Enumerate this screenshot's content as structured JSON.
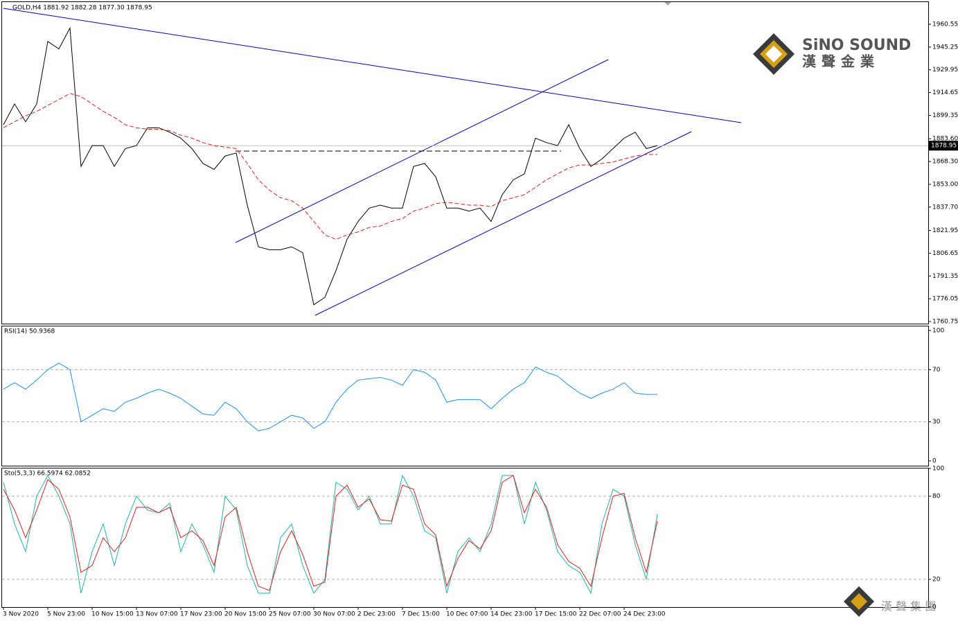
{
  "chart_data": [
    {
      "type": "line",
      "title": "GOLD,H4  1881.92 1882.28 1877.30 1878.95",
      "categories": [
        "3 Nov 2020",
        null,
        null,
        null,
        "5 Nov 23:00",
        null,
        null,
        null,
        "10 Nov 15:00",
        null,
        null,
        null,
        "13 Nov 07:00",
        null,
        null,
        null,
        "17 Nov 23:00",
        null,
        null,
        null,
        "20 Nov 15:00",
        null,
        null,
        null,
        "25 Nov 07:00",
        null,
        null,
        null,
        "30 Nov 07:00",
        null,
        null,
        null,
        "2 Dec 23:00",
        null,
        null,
        null,
        "7 Dec 15:00",
        null,
        null,
        null,
        "10 Dec 07:00",
        null,
        null,
        null,
        "14 Dec 23:00",
        null,
        null,
        null,
        "17 Dec 15:00",
        null,
        null,
        null,
        "22 Dec 07:00",
        null,
        null,
        null,
        "24 Dec 23:00",
        null,
        null,
        null
      ],
      "series": [
        {
          "color": "#000000",
          "dashed": false,
          "values": [
            1893,
            1907,
            1895,
            1907,
            1949,
            1944,
            1958,
            1865,
            1879,
            1879,
            1865,
            1877,
            1879,
            1891,
            1891,
            1888,
            1884,
            1877,
            1867,
            1863,
            1872,
            1874,
            1839,
            1811,
            1809,
            1809,
            1811,
            1807,
            1772,
            1777,
            1795,
            1816,
            1828,
            1837,
            1839,
            1837,
            1837,
            1865,
            1867,
            1858,
            1837,
            1837,
            1835,
            1837,
            1828,
            1846,
            1856,
            1860,
            1884,
            1881,
            1879,
            1893,
            1877,
            1865,
            1870,
            1877,
            1884,
            1888,
            1877,
            1879
          ]
        },
        {
          "color": "#e0201c",
          "dashed": true,
          "values": [
            1891,
            1895,
            1899,
            1902,
            1906,
            1910,
            1914,
            1912,
            1907,
            1902,
            1898,
            1893,
            1891,
            1890,
            1890,
            1889,
            1886,
            1884,
            1881,
            1879,
            1878,
            1877,
            1867,
            1856,
            1849,
            1844,
            1842,
            1837,
            1828,
            1819,
            1816,
            1819,
            1821,
            1824,
            1825,
            1828,
            1830,
            1835,
            1837,
            1840,
            1841,
            1840,
            1839,
            1839,
            1838,
            1842,
            1844,
            1846,
            1851,
            1856,
            1860,
            1864,
            1866,
            1866,
            1867,
            1868,
            1870,
            1872,
            1873,
            1873
          ]
        }
      ],
      "ylim": [
        1759.35,
        1975.45
      ],
      "yticks": [
        1960.55,
        1945.25,
        1929.95,
        1914.65,
        1899.35,
        {
          "value": 1883.6,
          "label": "1883.60"
        },
        {
          "value": 1868.3,
          "label": "1868.30"
        },
        {
          "value": 1853.0,
          "label": "1853.00"
        },
        {
          "value": 1837.7,
          "label": "1837.70"
        },
        1821.95,
        1806.65,
        1791.35,
        1776.05,
        1760.75
      ],
      "last_price": 1878.95,
      "grid": false
    },
    {
      "type": "line",
      "title": "RSI(14) 50.9368",
      "series": [
        {
          "color": "#1e90ff",
          "dashed": false,
          "values": [
            55,
            60,
            55,
            62,
            70,
            75,
            70,
            30,
            35,
            40,
            38,
            45,
            48,
            52,
            55,
            52,
            48,
            42,
            36,
            35,
            45,
            40,
            30,
            23,
            25,
            30,
            35,
            33,
            25,
            30,
            45,
            55,
            62,
            63,
            64,
            62,
            58,
            70,
            68,
            62,
            45,
            47,
            47,
            47,
            40,
            48,
            55,
            60,
            72,
            68,
            65,
            58,
            52,
            48,
            52,
            55,
            60,
            52,
            51,
            51
          ]
        }
      ],
      "ylim": [
        -3.7,
        103.7
      ],
      "yticks": [
        100,
        70,
        30,
        0
      ],
      "grid": true
    },
    {
      "type": "line",
      "title": "Sto(5,3,3) 66.5974 62.0852",
      "series": [
        {
          "color": "#20b2aa",
          "dashed": false,
          "values": [
            90,
            60,
            40,
            80,
            95,
            80,
            60,
            10,
            40,
            60,
            30,
            60,
            80,
            70,
            68,
            75,
            40,
            60,
            45,
            25,
            80,
            70,
            30,
            10,
            10,
            50,
            60,
            30,
            10,
            20,
            90,
            85,
            70,
            80,
            60,
            60,
            95,
            80,
            55,
            50,
            10,
            40,
            50,
            40,
            60,
            95,
            95,
            60,
            90,
            70,
            40,
            30,
            25,
            10,
            60,
            85,
            80,
            45,
            20,
            67
          ]
        },
        {
          "color": "#e0201c",
          "dashed": false,
          "values": [
            85,
            70,
            50,
            70,
            92,
            85,
            65,
            25,
            30,
            50,
            40,
            50,
            72,
            72,
            68,
            72,
            50,
            55,
            48,
            30,
            65,
            72,
            40,
            15,
            12,
            40,
            55,
            38,
            15,
            18,
            80,
            88,
            72,
            78,
            63,
            62,
            88,
            85,
            60,
            52,
            15,
            35,
            48,
            42,
            55,
            90,
            95,
            68,
            85,
            72,
            45,
            33,
            28,
            15,
            50,
            80,
            82,
            50,
            25,
            62
          ]
        }
      ],
      "ylim": [
        0,
        100
      ],
      "yticks": [
        100,
        80,
        20,
        0
      ],
      "grid": true
    }
  ],
  "logo": {
    "name": "SiNO SOUND",
    "chinese": "漢聲金業"
  },
  "watermark": "漢 聲 集 團"
}
